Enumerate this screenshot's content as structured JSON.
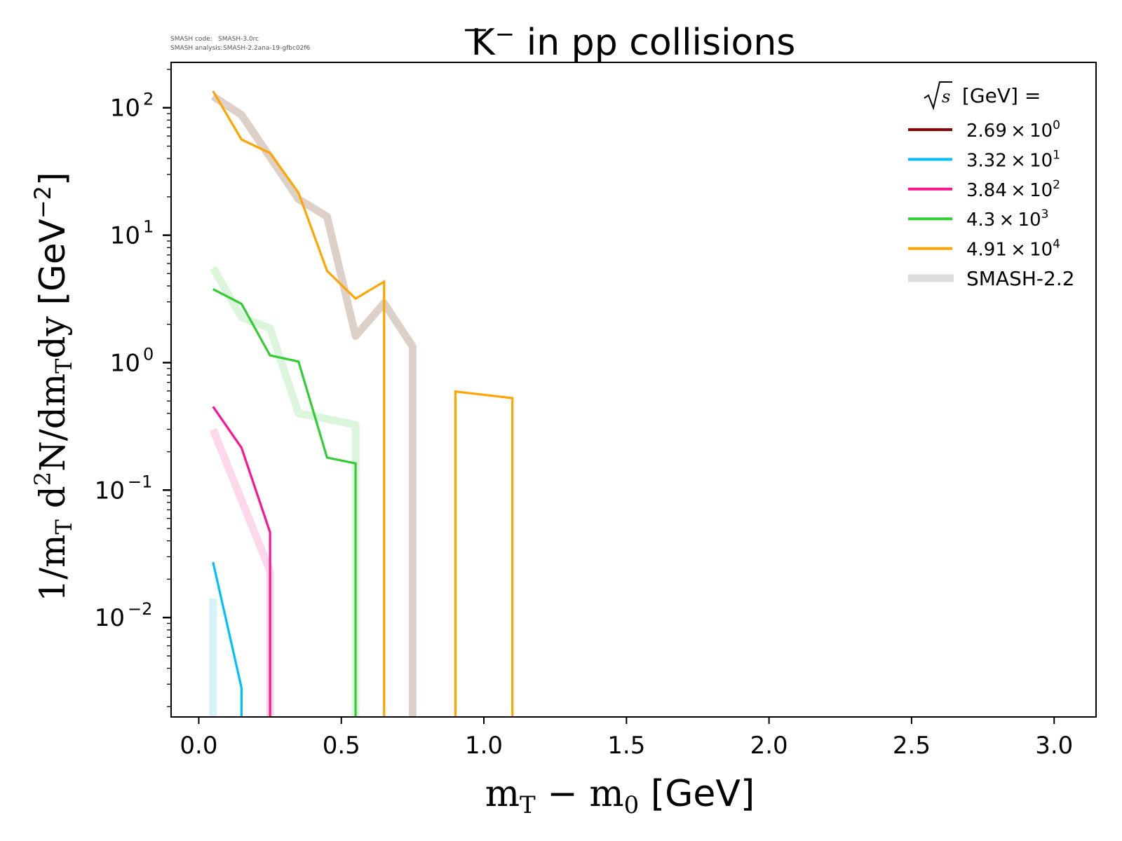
{
  "header": {
    "code_label": "SMASH code:",
    "code_value": "SMASH-3.0rc",
    "analysis_label": "SMASH analysis:",
    "analysis_value": "SMASH-2.2ana-19-gfbc02f6"
  },
  "chart_data": {
    "type": "line",
    "title": "K̅⁻ in pp collisions",
    "title_parts": {
      "particle": "K",
      "charge": "−",
      "rest": " in pp collisions"
    },
    "xlabel": "m_T − m_0 [GeV]",
    "xlabel_parts": {
      "m1": "m",
      "sub1": "T",
      "minus": " − ",
      "m2": "m",
      "sub2": "0",
      "unit": " [GeV]"
    },
    "ylabel": "1/m_T d²N/dm_Tdy [GeV⁻²]",
    "ylabel_parts": {
      "a": "1/m",
      "subT": "T",
      "b": " d",
      "sup2": "2",
      "c": "N/dm",
      "subT2": "T",
      "d": "dy",
      "unit": " [GeV",
      "unit_sup": "−2",
      "unit_end": "]"
    },
    "xscale": "linear",
    "yscale": "log",
    "xlim": [
      -0.097,
      3.147
    ],
    "ylim": [
      0.00166,
      227
    ],
    "xticks": [
      {
        "value": 0.0,
        "label": "0.0"
      },
      {
        "value": 0.5,
        "label": "0.5"
      },
      {
        "value": 1.0,
        "label": "1.0"
      },
      {
        "value": 1.5,
        "label": "1.5"
      },
      {
        "value": 2.0,
        "label": "2.0"
      },
      {
        "value": 2.5,
        "label": "2.5"
      },
      {
        "value": 3.0,
        "label": "3.0"
      }
    ],
    "yticks": [
      {
        "value": 100,
        "base": "10",
        "exp": "2"
      },
      {
        "value": 10,
        "base": "10",
        "exp": "1"
      },
      {
        "value": 1,
        "base": "10",
        "exp": "0"
      },
      {
        "value": 0.1,
        "base": "10",
        "exp": "−1"
      },
      {
        "value": 0.01,
        "base": "10",
        "exp": "−2"
      }
    ],
    "grid": false,
    "legend": {
      "position": "top-right",
      "title_sqrt": "s",
      "title_text": "[GeV] =",
      "entries": [
        {
          "mantissa": "2.69",
          "times": "×",
          "base": "10",
          "exp": "0",
          "color": "#8b0000"
        },
        {
          "mantissa": "3.32",
          "times": "×",
          "base": "10",
          "exp": "1",
          "color": "#00bfff"
        },
        {
          "mantissa": "3.84",
          "times": "×",
          "base": "10",
          "exp": "2",
          "color": "#ff1493"
        },
        {
          "mantissa": "4.3",
          "times": "×",
          "base": "10",
          "exp": "3",
          "color": "#32cd32"
        },
        {
          "mantissa": "4.91",
          "times": "×",
          "base": "10",
          "exp": "4",
          "color": "#ffa500"
        }
      ],
      "reference": {
        "label": "SMASH-2.2",
        "color": "#dcdcdc"
      }
    },
    "series": [
      {
        "name": "2.69 × 10^0",
        "color": "#8b0000",
        "x": [],
        "y": []
      },
      {
        "name": "3.32 × 10^1",
        "color": "#00bfff",
        "x": [
          0.05,
          0.15,
          0.15
        ],
        "y": [
          0.0272,
          0.00281,
          0
        ]
      },
      {
        "name": "3.84 × 10^2",
        "color": "#ff1493",
        "x": [
          0.05,
          0.15,
          0.25,
          0.25
        ],
        "y": [
          0.452,
          0.215,
          0.0467,
          0
        ]
      },
      {
        "name": "4.3 × 10^3",
        "color": "#32cd32",
        "x": [
          0.05,
          0.15,
          0.25,
          0.35,
          0.45,
          0.55,
          0.55
        ],
        "y": [
          3.77,
          2.89,
          1.14,
          1.02,
          0.18,
          0.162,
          0
        ]
      },
      {
        "name": "4.91 × 10^4",
        "color": "#ffa500",
        "x": [
          0.05,
          0.15,
          0.25,
          0.35,
          0.45,
          0.55,
          0.65,
          0.65,
          0.9,
          0.9,
          1.1,
          1.1
        ],
        "y": [
          135,
          56.3,
          44.1,
          21.5,
          5.25,
          3.18,
          4.32,
          0,
          0,
          0.593,
          0.527,
          0
        ]
      }
    ],
    "reference_series": [
      {
        "name": "SMASH-2.2 (3.32 × 10^1)",
        "color": "#d6f3fc",
        "x": [
          0.05,
          0.05
        ],
        "y": [
          0.0141,
          0
        ]
      },
      {
        "name": "SMASH-2.2 (3.84 × 10^2)",
        "color": "#fdd8ea",
        "x": [
          0.05,
          0.25,
          0.25
        ],
        "y": [
          0.299,
          0.0232,
          0
        ]
      },
      {
        "name": "SMASH-2.2 (4.3 × 10^3)",
        "color": "#dcf6dc",
        "x": [
          0.05,
          0.15,
          0.25,
          0.35,
          0.45,
          0.55,
          0.55
        ],
        "y": [
          5.52,
          2.27,
          1.86,
          0.4,
          0.362,
          0.325,
          0
        ]
      },
      {
        "name": "SMASH-2.2 (4.91 × 10^4)",
        "color": "#dcd0c8",
        "x": [
          0.05,
          0.15,
          0.25,
          0.35,
          0.45,
          0.55,
          0.65,
          0.75,
          0.75
        ],
        "y": [
          123,
          87.8,
          41,
          19.2,
          14.0,
          1.62,
          2.93,
          1.34,
          0
        ]
      }
    ]
  }
}
